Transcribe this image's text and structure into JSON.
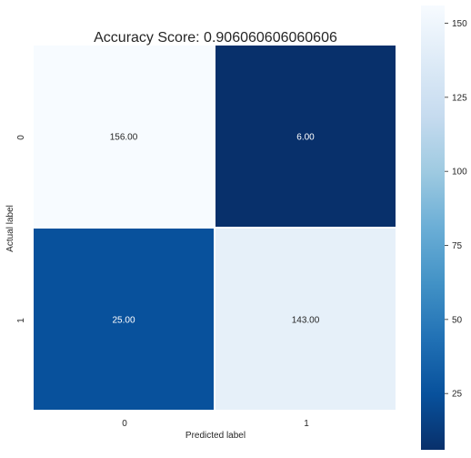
{
  "chart_data": {
    "type": "heatmap",
    "title": "Accuracy Score: 0.906060606060606",
    "xlabel": "Predicted label",
    "ylabel": "Actual label",
    "x_categories": [
      "0",
      "1"
    ],
    "y_categories": [
      "0",
      "1"
    ],
    "values": [
      [
        156,
        6
      ],
      [
        25,
        143
      ]
    ],
    "cell_labels": [
      [
        "156.00",
        "6.00"
      ],
      [
        "25.00",
        "143.00"
      ]
    ],
    "colormap": "Blues_r",
    "vmin": 6,
    "vmax": 156,
    "colorbar_ticks": [
      25,
      50,
      75,
      100,
      125,
      150
    ],
    "colorbar_tick_labels": [
      "25",
      "50",
      "75",
      "100",
      "125",
      "150"
    ],
    "grid": false
  }
}
